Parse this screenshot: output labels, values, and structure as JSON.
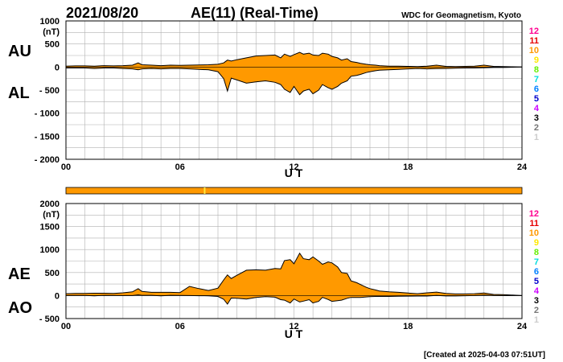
{
  "header": {
    "date": "2021/08/20",
    "title": "AE(11) (Real-Time)",
    "source": "WDC for Geomagnetism, Kyoto"
  },
  "footer": {
    "created": "[Created at 2025-04-03 07:51UT]"
  },
  "colors": {
    "fill": "#ff9900",
    "grid": "#b0b0b0",
    "line": "#000000",
    "status_mark": "#ffe840"
  },
  "status_bar": {
    "marker_ut": 7.3
  },
  "station_scale": {
    "labels": [
      "12",
      "11",
      "10",
      "9",
      "8",
      "7",
      "6",
      "5",
      "4",
      "3",
      "2",
      "1"
    ],
    "colors": [
      "#ff0090",
      "#e60000",
      "#ff9900",
      "#ffe800",
      "#66ee00",
      "#00dddd",
      "#0080ff",
      "#0000cc",
      "#cc00ff",
      "#000000",
      "#777777",
      "#cccccc"
    ]
  },
  "chart_data": [
    {
      "type": "area",
      "name": "AU/AL",
      "labels_upper": "AU",
      "labels_lower": "AL",
      "unit": "(nT)",
      "xlabel": "U T",
      "xlim": [
        0,
        24
      ],
      "ylim": [
        -2000,
        1000
      ],
      "y_ticks": [
        {
          "v": 1000,
          "t": "1000"
        },
        {
          "v": 500,
          "t": "500"
        },
        {
          "v": 0,
          "t": "0"
        },
        {
          "v": -500,
          "t": "- 500"
        },
        {
          "v": -1000,
          "t": "- 1000"
        },
        {
          "v": -1500,
          "t": "- 1500"
        },
        {
          "v": -2000,
          "t": "- 2000"
        }
      ],
      "x_ticks": [
        {
          "v": 0,
          "t": "00"
        },
        {
          "v": 6,
          "t": "06"
        },
        {
          "v": 12,
          "t": "12"
        },
        {
          "v": 18,
          "t": "18"
        },
        {
          "v": 24,
          "t": "24"
        }
      ],
      "x": [
        0,
        0.5,
        1,
        1.5,
        2,
        2.5,
        3,
        3.5,
        3.8,
        4,
        4.5,
        5,
        5.5,
        6,
        6.5,
        7,
        7.5,
        8,
        8.3,
        8.5,
        8.7,
        9,
        9.5,
        10,
        10.5,
        11,
        11.3,
        11.5,
        11.8,
        12,
        12.3,
        12.5,
        12.8,
        13,
        13.3,
        13.5,
        13.8,
        14,
        14.3,
        14.5,
        14.8,
        15,
        15.3,
        15.5,
        15.8,
        16,
        16.3,
        16.5,
        17,
        17.5,
        18,
        18.5,
        19,
        19.5,
        20,
        20.5,
        21,
        21.5,
        22,
        22.5,
        23,
        23.5,
        24
      ],
      "series": [
        {
          "name": "AU",
          "values": [
            20,
            25,
            25,
            20,
            30,
            25,
            30,
            40,
            90,
            50,
            40,
            30,
            40,
            35,
            40,
            45,
            50,
            60,
            90,
            150,
            130,
            160,
            200,
            240,
            250,
            260,
            200,
            280,
            230,
            270,
            320,
            280,
            300,
            260,
            250,
            300,
            280,
            230,
            200,
            150,
            180,
            120,
            100,
            80,
            60,
            50,
            40,
            30,
            20,
            20,
            15,
            10,
            20,
            40,
            15,
            10,
            15,
            20,
            40,
            15,
            10,
            5,
            0
          ]
        },
        {
          "name": "AL",
          "values": [
            -20,
            -20,
            -20,
            -30,
            -20,
            -20,
            -30,
            -40,
            -60,
            -40,
            -30,
            -40,
            -30,
            -30,
            -40,
            -50,
            -60,
            -100,
            -250,
            -520,
            -240,
            -280,
            -350,
            -320,
            -300,
            -330,
            -380,
            -480,
            -550,
            -420,
            -600,
            -520,
            -480,
            -580,
            -500,
            -380,
            -450,
            -480,
            -420,
            -350,
            -300,
            -200,
            -180,
            -160,
            -120,
            -100,
            -80,
            -70,
            -60,
            -50,
            -40,
            -30,
            -40,
            -35,
            -30,
            -25,
            -20,
            -20,
            -15,
            -10,
            -10,
            -5,
            0
          ]
        }
      ]
    },
    {
      "type": "area",
      "name": "AE/AO",
      "labels_upper": "AE",
      "labels_lower": "AO",
      "unit": "(nT)",
      "xlabel": "U T",
      "xlim": [
        0,
        24
      ],
      "ylim": [
        -500,
        2000
      ],
      "y_ticks": [
        {
          "v": 2000,
          "t": "2000"
        },
        {
          "v": 1500,
          "t": "1500"
        },
        {
          "v": 1000,
          "t": "1000"
        },
        {
          "v": 500,
          "t": "500"
        },
        {
          "v": 0,
          "t": "0"
        },
        {
          "v": -500,
          "t": "- 500"
        }
      ],
      "x_ticks": [
        {
          "v": 0,
          "t": "00"
        },
        {
          "v": 6,
          "t": "06"
        },
        {
          "v": 12,
          "t": "12"
        },
        {
          "v": 18,
          "t": "18"
        },
        {
          "v": 24,
          "t": "24"
        }
      ],
      "x": [
        0,
        0.5,
        1,
        1.5,
        2,
        2.5,
        3,
        3.5,
        3.8,
        4,
        4.5,
        5,
        5.5,
        6,
        6.5,
        7,
        7.5,
        8,
        8.3,
        8.5,
        8.7,
        9,
        9.5,
        10,
        10.5,
        11,
        11.3,
        11.5,
        11.8,
        12,
        12.3,
        12.5,
        12.8,
        13,
        13.3,
        13.5,
        13.8,
        14,
        14.3,
        14.5,
        14.8,
        15,
        15.3,
        15.5,
        15.8,
        16,
        16.3,
        16.5,
        17,
        17.5,
        18,
        18.5,
        19,
        19.5,
        20,
        20.5,
        21,
        21.5,
        22,
        22.5,
        23,
        23.5,
        24
      ],
      "series": [
        {
          "name": "AE",
          "values": [
            40,
            45,
            45,
            50,
            50,
            45,
            60,
            80,
            150,
            90,
            70,
            70,
            70,
            65,
            200,
            150,
            110,
            160,
            340,
            450,
            370,
            440,
            550,
            560,
            550,
            590,
            580,
            760,
            780,
            690,
            920,
            800,
            780,
            840,
            750,
            680,
            730,
            710,
            620,
            500,
            480,
            320,
            280,
            240,
            180,
            150,
            120,
            100,
            80,
            70,
            55,
            40,
            60,
            75,
            45,
            35,
            35,
            40,
            55,
            25,
            20,
            10,
            0
          ]
        },
        {
          "name": "AO",
          "values": [
            0,
            3,
            3,
            -5,
            5,
            3,
            0,
            0,
            15,
            5,
            5,
            -5,
            5,
            3,
            0,
            -3,
            -5,
            -20,
            -80,
            -185,
            -55,
            -60,
            -75,
            -40,
            -25,
            -35,
            -90,
            -100,
            -160,
            -75,
            -140,
            -120,
            -90,
            -160,
            -125,
            -40,
            -85,
            -125,
            -110,
            -100,
            -60,
            -40,
            -40,
            -40,
            -30,
            -25,
            -20,
            -20,
            -20,
            -15,
            -12,
            -10,
            -10,
            3,
            -8,
            -8,
            -3,
            0,
            13,
            3,
            0,
            0,
            0
          ]
        }
      ]
    }
  ]
}
